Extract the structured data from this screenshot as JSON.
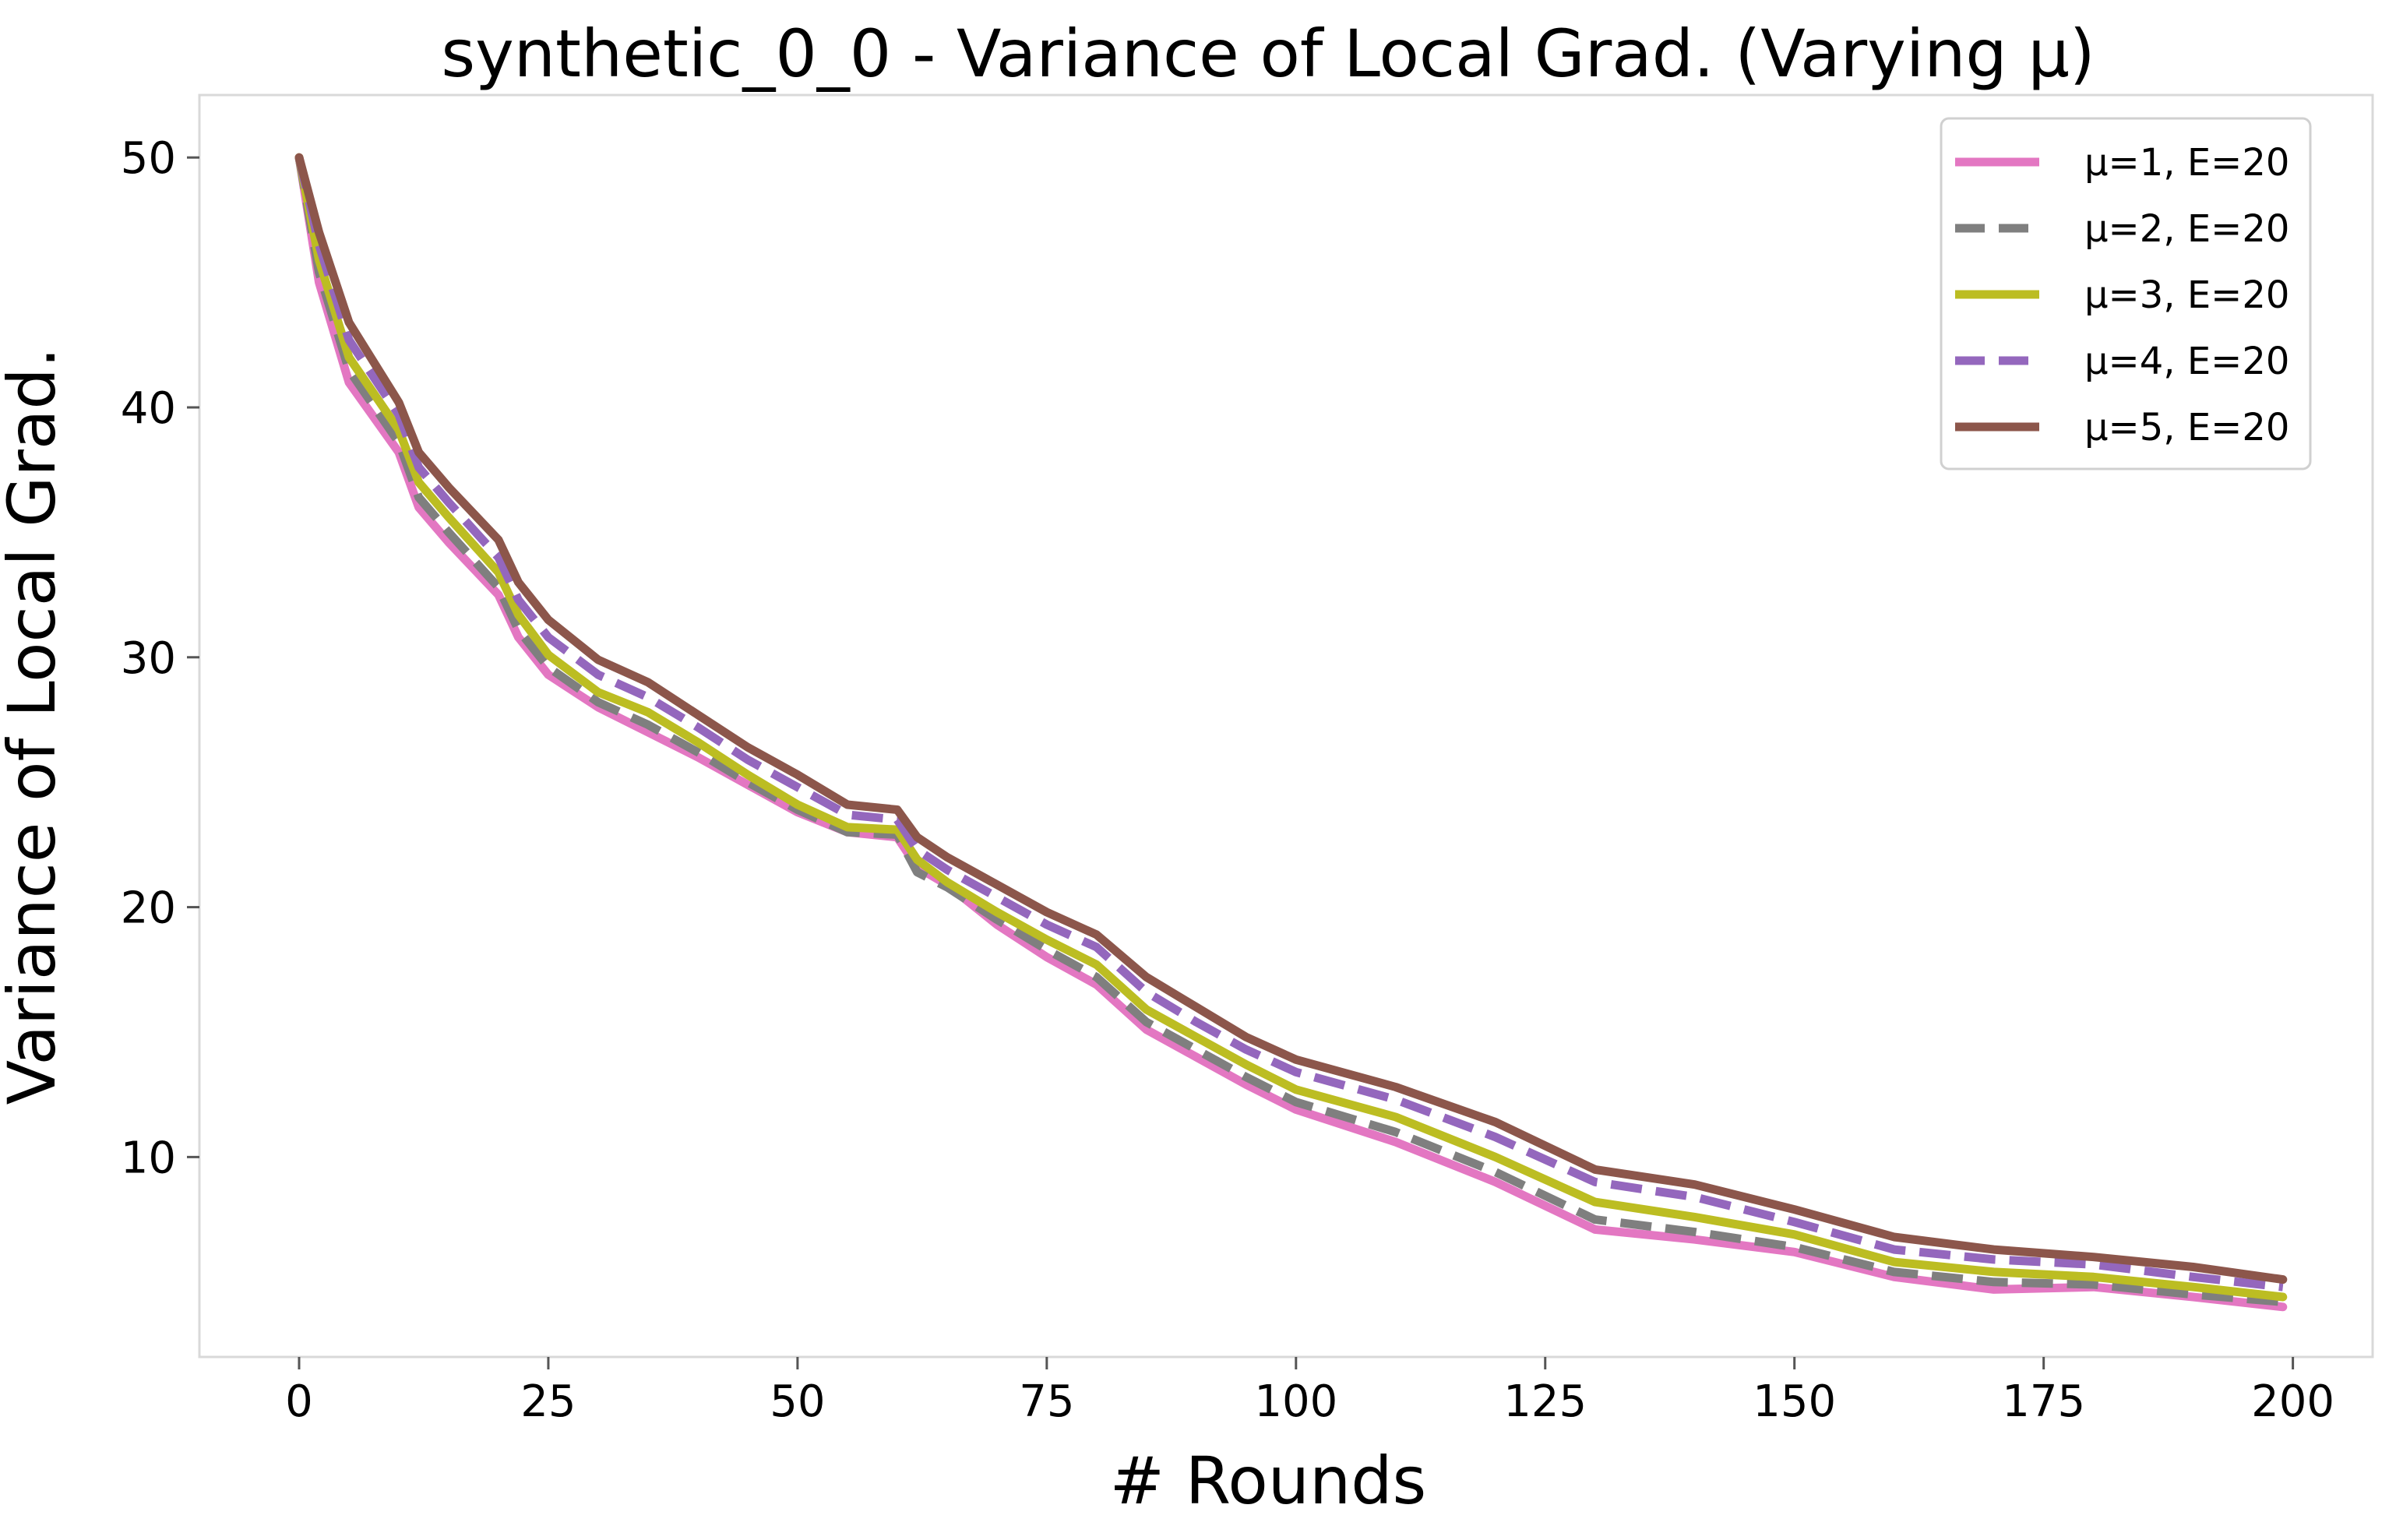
{
  "chart_data": {
    "type": "line",
    "title": "synthetic_0_0 - Variance of Local Grad. (Varying μ)",
    "xlabel": "# Rounds",
    "ylabel": "Variance of Local Grad.",
    "xlim": [
      -10,
      208
    ],
    "ylim": [
      2,
      52.5
    ],
    "xticks": [
      0,
      25,
      50,
      75,
      100,
      125,
      150,
      175,
      200
    ],
    "yticks": [
      10,
      20,
      30,
      40,
      50
    ],
    "grid": false,
    "legend_position": "top-right",
    "x": [
      0,
      2,
      5,
      10,
      12,
      15,
      20,
      22,
      25,
      30,
      35,
      40,
      45,
      50,
      55,
      60,
      62,
      65,
      70,
      75,
      80,
      85,
      90,
      95,
      100,
      110,
      120,
      130,
      140,
      150,
      160,
      170,
      180,
      190,
      199
    ],
    "series": [
      {
        "name": "μ=1, E=20",
        "color": "#e377c2",
        "dash": "solid",
        "values": [
          50.0,
          45.0,
          41.0,
          38.2,
          36.0,
          34.6,
          32.5,
          30.8,
          29.3,
          28.0,
          27.0,
          26.0,
          24.9,
          23.8,
          23.0,
          22.8,
          21.6,
          20.9,
          19.3,
          18.0,
          16.9,
          15.1,
          14.0,
          12.9,
          11.9,
          10.6,
          9.0,
          7.1,
          6.7,
          6.2,
          5.2,
          4.7,
          4.8,
          4.4,
          4.0
        ]
      },
      {
        "name": "μ=2, E=20",
        "color": "#7f7f7f",
        "dash": "dashed",
        "values": [
          50.0,
          45.4,
          41.5,
          38.6,
          36.4,
          35.0,
          32.8,
          31.1,
          29.6,
          28.2,
          27.3,
          26.2,
          25.0,
          23.9,
          23.0,
          22.9,
          21.4,
          20.8,
          19.5,
          18.3,
          17.2,
          15.4,
          14.3,
          13.2,
          12.2,
          11.0,
          9.4,
          7.5,
          7.0,
          6.4,
          5.4,
          5.0,
          4.9,
          4.5,
          4.2
        ]
      },
      {
        "name": "μ=3, E=20",
        "color": "#bcbd22",
        "dash": "solid",
        "values": [
          50.0,
          45.9,
          42.0,
          39.1,
          37.0,
          35.6,
          33.4,
          31.7,
          30.1,
          28.6,
          27.8,
          26.6,
          25.3,
          24.1,
          23.2,
          23.1,
          21.9,
          21.0,
          19.8,
          18.7,
          17.7,
          15.9,
          14.8,
          13.7,
          12.7,
          11.6,
          10.0,
          8.2,
          7.6,
          6.9,
          5.8,
          5.4,
          5.2,
          4.8,
          4.4
        ]
      },
      {
        "name": "μ=4, E=20",
        "color": "#9467bd",
        "dash": "dashed",
        "values": [
          50.0,
          46.5,
          42.7,
          39.7,
          37.6,
          36.2,
          34.0,
          32.3,
          30.8,
          29.3,
          28.4,
          27.2,
          25.9,
          24.8,
          23.7,
          23.5,
          22.3,
          21.5,
          20.4,
          19.3,
          18.4,
          16.6,
          15.4,
          14.3,
          13.4,
          12.3,
          10.8,
          9.0,
          8.4,
          7.4,
          6.3,
          5.9,
          5.7,
          5.2,
          4.8
        ]
      },
      {
        "name": "μ=5, E=20",
        "color": "#8c564b",
        "dash": "solid",
        "values": [
          50.0,
          47.0,
          43.4,
          40.2,
          38.2,
          36.8,
          34.7,
          33.0,
          31.5,
          29.9,
          29.0,
          27.7,
          26.4,
          25.3,
          24.1,
          23.9,
          22.8,
          22.0,
          20.9,
          19.8,
          18.9,
          17.2,
          16.0,
          14.8,
          13.9,
          12.8,
          11.4,
          9.5,
          8.9,
          7.9,
          6.8,
          6.3,
          6.0,
          5.6,
          5.1
        ]
      }
    ]
  }
}
